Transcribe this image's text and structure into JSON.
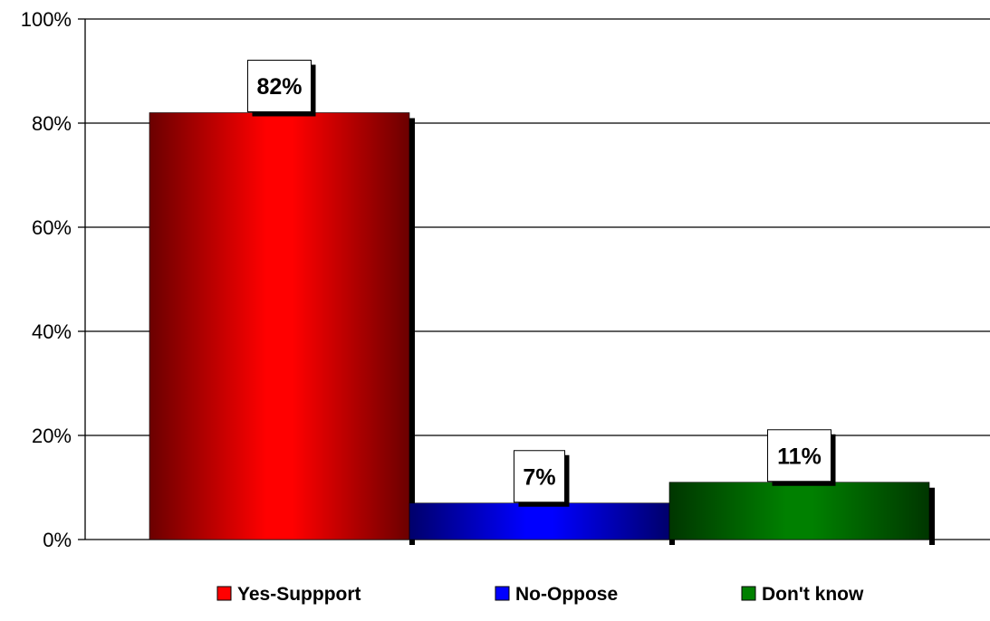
{
  "chart_data": {
    "type": "bar",
    "categories": [
      "Yes-Suppport",
      "No-Oppose",
      "Don't know"
    ],
    "values": [
      82,
      7,
      11
    ],
    "data_labels": [
      "82%",
      "7%",
      "11%"
    ],
    "colors": [
      "#ff0000",
      "#0000ff",
      "#008000"
    ],
    "title": "",
    "xlabel": "",
    "ylabel": "",
    "ylim": [
      0,
      100
    ],
    "yticks": [
      0,
      20,
      40,
      60,
      80,
      100
    ],
    "ytick_labels": [
      "0%",
      "20%",
      "40%",
      "60%",
      "80%",
      "100%"
    ],
    "grid": true,
    "legend_position": "bottom",
    "legend": [
      "Yes-Suppport",
      "No-Oppose",
      "Don't know"
    ]
  }
}
